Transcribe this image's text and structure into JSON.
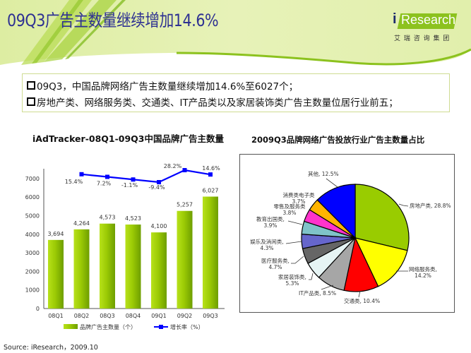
{
  "header": {
    "title": "09Q3广告主数量继续增加14.6%",
    "logo": {
      "i": "i",
      "brand": "Research",
      "subtitle": "艾 瑞 咨 询 集 团"
    }
  },
  "summary": {
    "bullets": [
      {
        "icon": "checkbox-icon",
        "text": "09Q3，中国品牌网络广告主数量继续增加14.6%至6027个；"
      },
      {
        "icon": "checkbox-icon",
        "text": "房地产类、网络服务类、交通类、IT产品类以及家居装饰类广告主数量位居行业前五；"
      }
    ]
  },
  "source": "Source: iResearch，2009.10",
  "colors": {
    "title": "#2E3192",
    "bar": "#99CC00",
    "line": "#0000FF",
    "header_bg": "#E4F0B2",
    "logo_green": "#8CC21E"
  },
  "chart_data": [
    {
      "type": "bar+line",
      "title": "iAdTracker-08Q1-09Q3中国品牌广告主数量",
      "xlabel": "",
      "ylabel": "",
      "ylim": [
        0,
        7000
      ],
      "yticks": [
        0,
        1000,
        2000,
        3000,
        4000,
        5000,
        6000,
        7000
      ],
      "grid": false,
      "legend_position": "bottom",
      "categories": [
        "08Q1",
        "08Q2",
        "08Q3",
        "08Q4",
        "09Q1",
        "09Q2",
        "09Q3"
      ],
      "series": [
        {
          "name": "品牌广告主数量（个）",
          "type": "bar",
          "color": "#99CC00",
          "values": [
            3694,
            4264,
            4573,
            4523,
            4100,
            5257,
            6027
          ],
          "labels": [
            "3,694",
            "4,264",
            "4,573",
            "4,523",
            "4,100",
            "5,257",
            "6,027"
          ]
        },
        {
          "name": "增长率（%）",
          "type": "line",
          "color": "#0000FF",
          "values": [
            null,
            15.4,
            7.2,
            -1.1,
            -9.4,
            28.2,
            14.6
          ],
          "labels": [
            "",
            "15.4%",
            "7.2%",
            "-1.1%",
            "-9.4%",
            "28.2%",
            "14.6%"
          ]
        }
      ]
    },
    {
      "type": "pie",
      "title": "2009Q3品牌网络广告投放行业广告主数量占比",
      "slices": [
        {
          "label": "房地产类",
          "value": 28.8,
          "color": "#99CC00",
          "lines": [
            "房地产类, 28.8%"
          ]
        },
        {
          "label": "网络服务类",
          "value": 14.2,
          "color": "#FFFF00",
          "lines": [
            "网络服务类,",
            "14.2%"
          ]
        },
        {
          "label": "交通类",
          "value": 10.4,
          "color": "#FF0000",
          "lines": [
            "交通类, 10.4%"
          ]
        },
        {
          "label": "IT产品类",
          "value": 8.5,
          "color": "#A6A6A6",
          "lines": [
            "IT产品类, 8.5%"
          ]
        },
        {
          "label": "家居装饰类",
          "value": 5.3,
          "color": "#E6F4F4",
          "lines": [
            "家居装饰类,",
            "5.3%"
          ]
        },
        {
          "label": "医疗服务类",
          "value": 4.7,
          "color": "#666666",
          "lines": [
            "医疗服务类,",
            "4.7%"
          ]
        },
        {
          "label": "娱乐及消闲类",
          "value": 4.3,
          "color": "#6666CC",
          "lines": [
            "娱乐及消闲类,",
            "4.3%"
          ]
        },
        {
          "label": "教育出国类",
          "value": 3.9,
          "color": "#7FC3C8",
          "lines": [
            "教育出国类,",
            "3.9%"
          ]
        },
        {
          "label": "零售及服务类",
          "value": 3.8,
          "color": "#FF33CC",
          "lines": [
            "零售及服务类",
            "3.8%"
          ]
        },
        {
          "label": "消费类电子类",
          "value": 3.7,
          "color": "#FFB400",
          "lines": [
            "消费类电子类",
            "3.7%"
          ]
        },
        {
          "label": "其他",
          "value": 12.5,
          "color": "#0000FF",
          "lines": [
            "其他, 12.5%"
          ]
        }
      ]
    }
  ]
}
